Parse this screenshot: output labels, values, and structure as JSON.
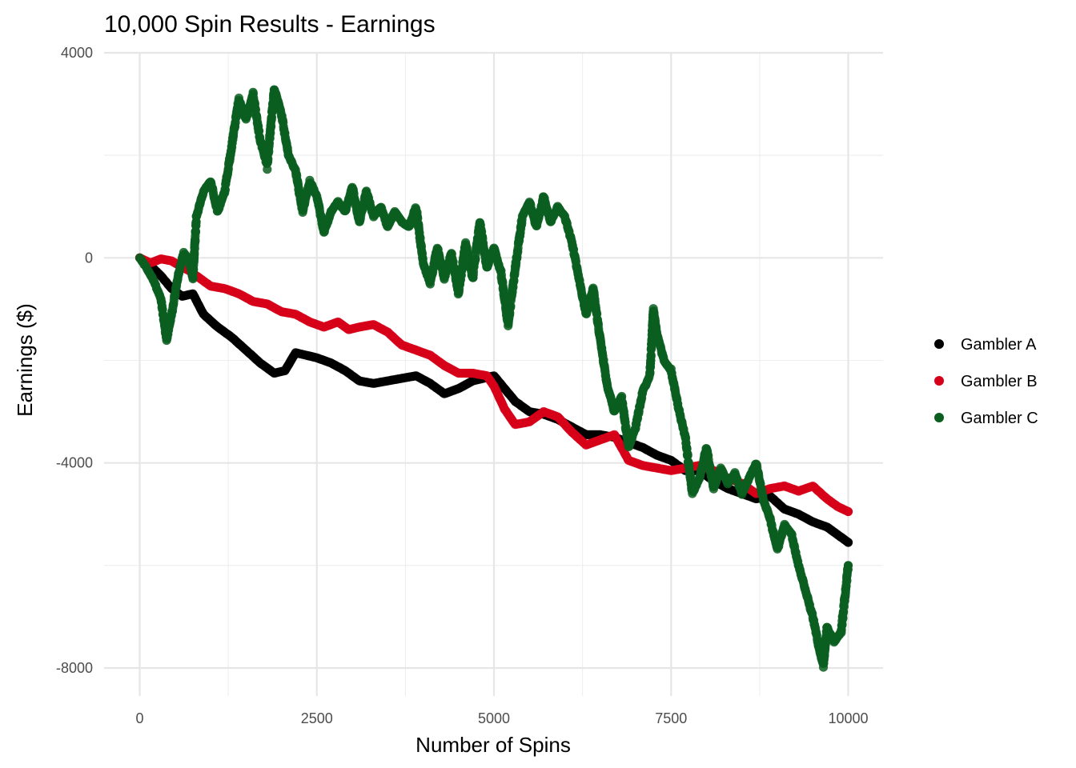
{
  "chart_data": {
    "type": "scatter",
    "title": "10,000 Spin Results - Earnings",
    "xlabel": "Number of Spins",
    "ylabel": "Earnings ($)",
    "xlim": [
      -150,
      10150
    ],
    "ylim": [
      -8500,
      4000
    ],
    "x_ticks": [
      0,
      2500,
      5000,
      7500,
      10000
    ],
    "x_tick_labels": [
      "0",
      "2500",
      "5000",
      "7500",
      "10000"
    ],
    "y_ticks": [
      4000,
      0,
      -4000,
      -8000
    ],
    "y_tick_labels": [
      "4000",
      "0",
      "-4000",
      "-8000"
    ],
    "grid": true,
    "legend_position": "right",
    "series": [
      {
        "name": "Gambler A",
        "color": "#000000",
        "points": [
          [
            0,
            0
          ],
          [
            150,
            -150
          ],
          [
            300,
            -350
          ],
          [
            450,
            -600
          ],
          [
            600,
            -750
          ],
          [
            750,
            -700
          ],
          [
            900,
            -1100
          ],
          [
            1100,
            -1350
          ],
          [
            1300,
            -1550
          ],
          [
            1500,
            -1800
          ],
          [
            1700,
            -2050
          ],
          [
            1900,
            -2250
          ],
          [
            2050,
            -2200
          ],
          [
            2200,
            -1850
          ],
          [
            2350,
            -1900
          ],
          [
            2500,
            -1950
          ],
          [
            2700,
            -2050
          ],
          [
            2900,
            -2200
          ],
          [
            3100,
            -2400
          ],
          [
            3300,
            -2450
          ],
          [
            3500,
            -2400
          ],
          [
            3700,
            -2350
          ],
          [
            3900,
            -2300
          ],
          [
            4100,
            -2450
          ],
          [
            4300,
            -2650
          ],
          [
            4500,
            -2550
          ],
          [
            4700,
            -2400
          ],
          [
            4850,
            -2350
          ],
          [
            5000,
            -2300
          ],
          [
            5150,
            -2550
          ],
          [
            5300,
            -2800
          ],
          [
            5500,
            -3000
          ],
          [
            5700,
            -3050
          ],
          [
            5900,
            -3150
          ],
          [
            6100,
            -3300
          ],
          [
            6300,
            -3450
          ],
          [
            6500,
            -3450
          ],
          [
            6700,
            -3500
          ],
          [
            6900,
            -3600
          ],
          [
            7100,
            -3700
          ],
          [
            7300,
            -3850
          ],
          [
            7500,
            -3950
          ],
          [
            7700,
            -4150
          ],
          [
            7900,
            -4150
          ],
          [
            8100,
            -4350
          ],
          [
            8300,
            -4500
          ],
          [
            8500,
            -4600
          ],
          [
            8700,
            -4700
          ],
          [
            8900,
            -4650
          ],
          [
            9100,
            -4900
          ],
          [
            9300,
            -5000
          ],
          [
            9500,
            -5150
          ],
          [
            9700,
            -5250
          ],
          [
            9850,
            -5400
          ],
          [
            10000,
            -5550
          ]
        ]
      },
      {
        "name": "Gambler B",
        "color": "#d7001a",
        "points": [
          [
            0,
            0
          ],
          [
            150,
            -100
          ],
          [
            300,
            -20
          ],
          [
            450,
            -60
          ],
          [
            600,
            -180
          ],
          [
            700,
            -250
          ],
          [
            800,
            -350
          ],
          [
            1000,
            -550
          ],
          [
            1200,
            -600
          ],
          [
            1400,
            -700
          ],
          [
            1600,
            -850
          ],
          [
            1800,
            -900
          ],
          [
            2000,
            -1050
          ],
          [
            2200,
            -1100
          ],
          [
            2400,
            -1250
          ],
          [
            2600,
            -1350
          ],
          [
            2800,
            -1250
          ],
          [
            2950,
            -1400
          ],
          [
            3100,
            -1350
          ],
          [
            3300,
            -1300
          ],
          [
            3500,
            -1450
          ],
          [
            3700,
            -1700
          ],
          [
            3900,
            -1800
          ],
          [
            4100,
            -1900
          ],
          [
            4300,
            -2100
          ],
          [
            4500,
            -2250
          ],
          [
            4700,
            -2250
          ],
          [
            4900,
            -2300
          ],
          [
            5000,
            -2500
          ],
          [
            5150,
            -2950
          ],
          [
            5300,
            -3250
          ],
          [
            5500,
            -3200
          ],
          [
            5700,
            -3000
          ],
          [
            5900,
            -3100
          ],
          [
            6100,
            -3400
          ],
          [
            6300,
            -3650
          ],
          [
            6500,
            -3550
          ],
          [
            6700,
            -3450
          ],
          [
            6900,
            -3950
          ],
          [
            7100,
            -4050
          ],
          [
            7300,
            -4100
          ],
          [
            7500,
            -4150
          ],
          [
            7700,
            -4100
          ],
          [
            7900,
            -4050
          ],
          [
            8100,
            -4150
          ],
          [
            8300,
            -4300
          ],
          [
            8500,
            -4400
          ],
          [
            8700,
            -4600
          ],
          [
            8900,
            -4500
          ],
          [
            9100,
            -4450
          ],
          [
            9300,
            -4550
          ],
          [
            9500,
            -4450
          ],
          [
            9700,
            -4700
          ],
          [
            9850,
            -4850
          ],
          [
            10000,
            -4950
          ]
        ]
      },
      {
        "name": "Gambler C",
        "color": "#0b5e20",
        "points": [
          [
            0,
            0
          ],
          [
            100,
            -200
          ],
          [
            200,
            -450
          ],
          [
            300,
            -800
          ],
          [
            380,
            -1600
          ],
          [
            450,
            -1100
          ],
          [
            550,
            -300
          ],
          [
            620,
            100
          ],
          [
            700,
            -50
          ],
          [
            750,
            -400
          ],
          [
            800,
            800
          ],
          [
            900,
            1300
          ],
          [
            1000,
            1500
          ],
          [
            1100,
            900
          ],
          [
            1200,
            1300
          ],
          [
            1300,
            2200
          ],
          [
            1400,
            3100
          ],
          [
            1500,
            2700
          ],
          [
            1600,
            3200
          ],
          [
            1700,
            2300
          ],
          [
            1800,
            1800
          ],
          [
            1900,
            3300
          ],
          [
            2000,
            2800
          ],
          [
            2100,
            2000
          ],
          [
            2200,
            1700
          ],
          [
            2300,
            900
          ],
          [
            2400,
            1500
          ],
          [
            2500,
            1200
          ],
          [
            2600,
            500
          ],
          [
            2700,
            900
          ],
          [
            2800,
            1100
          ],
          [
            2900,
            900
          ],
          [
            3000,
            1400
          ],
          [
            3100,
            700
          ],
          [
            3200,
            1300
          ],
          [
            3300,
            800
          ],
          [
            3400,
            1000
          ],
          [
            3500,
            600
          ],
          [
            3600,
            900
          ],
          [
            3700,
            700
          ],
          [
            3800,
            600
          ],
          [
            3900,
            1000
          ],
          [
            4000,
            -100
          ],
          [
            4100,
            -500
          ],
          [
            4200,
            200
          ],
          [
            4300,
            -400
          ],
          [
            4400,
            100
          ],
          [
            4500,
            -700
          ],
          [
            4600,
            300
          ],
          [
            4700,
            -400
          ],
          [
            4800,
            700
          ],
          [
            4900,
            -200
          ],
          [
            5000,
            200
          ],
          [
            5100,
            -300
          ],
          [
            5200,
            -1300
          ],
          [
            5300,
            -200
          ],
          [
            5400,
            800
          ],
          [
            5500,
            1100
          ],
          [
            5600,
            600
          ],
          [
            5700,
            1200
          ],
          [
            5800,
            700
          ],
          [
            5900,
            1000
          ],
          [
            6000,
            800
          ],
          [
            6100,
            300
          ],
          [
            6200,
            -400
          ],
          [
            6300,
            -1100
          ],
          [
            6400,
            -600
          ],
          [
            6500,
            -1600
          ],
          [
            6600,
            -2500
          ],
          [
            6700,
            -3000
          ],
          [
            6800,
            -2700
          ],
          [
            6900,
            -3700
          ],
          [
            7000,
            -3300
          ],
          [
            7100,
            -2600
          ],
          [
            7200,
            -2300
          ],
          [
            7250,
            -1000
          ],
          [
            7300,
            -1500
          ],
          [
            7400,
            -2000
          ],
          [
            7500,
            -2200
          ],
          [
            7600,
            -2900
          ],
          [
            7700,
            -3500
          ],
          [
            7800,
            -4600
          ],
          [
            7900,
            -4300
          ],
          [
            8000,
            -3700
          ],
          [
            8100,
            -4500
          ],
          [
            8200,
            -4100
          ],
          [
            8300,
            -4400
          ],
          [
            8400,
            -4200
          ],
          [
            8500,
            -4600
          ],
          [
            8600,
            -4300
          ],
          [
            8700,
            -4000
          ],
          [
            8800,
            -4700
          ],
          [
            8900,
            -5100
          ],
          [
            9000,
            -5700
          ],
          [
            9100,
            -5200
          ],
          [
            9200,
            -5400
          ],
          [
            9300,
            -6000
          ],
          [
            9400,
            -6500
          ],
          [
            9500,
            -7000
          ],
          [
            9600,
            -7700
          ],
          [
            9650,
            -7950
          ],
          [
            9700,
            -7200
          ],
          [
            9800,
            -7500
          ],
          [
            9900,
            -7300
          ],
          [
            10000,
            -6000
          ]
        ]
      }
    ]
  }
}
